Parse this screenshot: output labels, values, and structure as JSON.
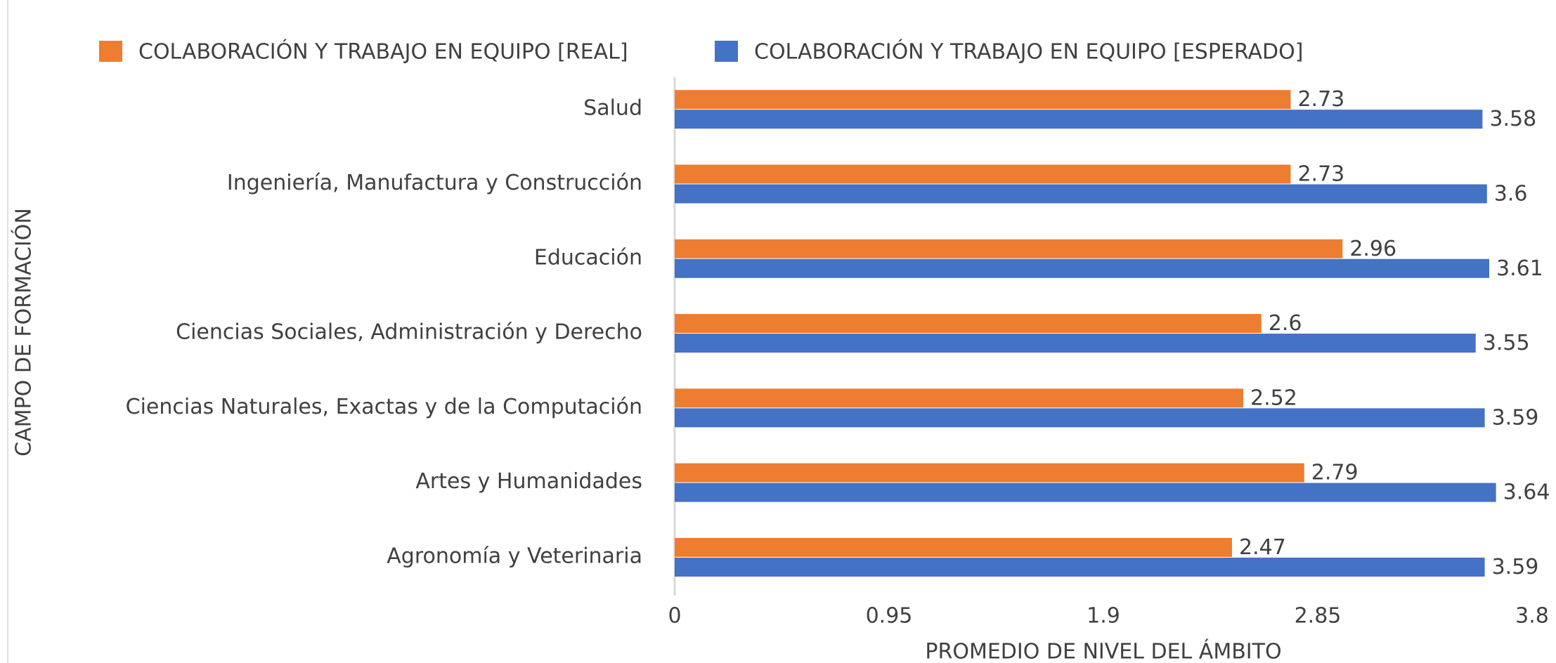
{
  "chart_data": {
    "type": "bar",
    "orientation": "horizontal",
    "xlabel": "PROMEDIO DE NIVEL DEL ÁMBITO",
    "ylabel": "CAMPO DE FORMACIÓN",
    "categories": [
      "Salud",
      "Ingeniería, Manufactura y Construcción",
      "Educación",
      "Ciencias Sociales, Administración y Derecho",
      "Ciencias Naturales, Exactas y de la Computación",
      "Artes y Humanidades",
      "Agronomía y Veterinaria"
    ],
    "series": [
      {
        "name": "COLABORACIÓN Y TRABAJO EN EQUIPO [REAL]",
        "color": "#ed7d31",
        "values": [
          2.73,
          2.73,
          2.96,
          2.6,
          2.52,
          2.79,
          2.47
        ]
      },
      {
        "name": "COLABORACIÓN Y TRABAJO EN EQUIPO [ESPERADO]",
        "color": "#4472c4",
        "values": [
          3.58,
          3.6,
          3.61,
          3.55,
          3.59,
          3.64,
          3.59
        ]
      }
    ],
    "xlim": [
      0,
      3.8
    ],
    "xticks": [
      0,
      0.95,
      1.9,
      2.85,
      3.8
    ],
    "grid": false,
    "legend": "top"
  }
}
